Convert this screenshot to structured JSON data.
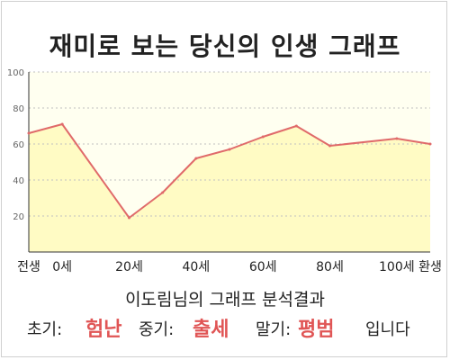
{
  "title": "재미로 보는 당신의 인생 그래프",
  "chart_data": {
    "type": "area",
    "categories": [
      "전생",
      "0세",
      "20세",
      "40세",
      "60세",
      "80세",
      "100세",
      "환생"
    ],
    "x": [
      -10,
      0,
      20,
      30,
      40,
      50,
      60,
      70,
      80,
      100,
      110
    ],
    "values": [
      66,
      71,
      19,
      33,
      52,
      57,
      64,
      70,
      59,
      63,
      60
    ],
    "x_range": [
      -10,
      110
    ],
    "yticks": [
      20,
      40,
      60,
      80,
      100
    ],
    "ylim": [
      0,
      100
    ],
    "grid": true,
    "line_color": "#e06a6a",
    "fill_color": "#fffbc4",
    "plot_bg": "#fffff0"
  },
  "result": {
    "heading": "이도림님의 그래프 분석결과",
    "early_label": "초기:",
    "early_value": "험난",
    "mid_label": "중기:",
    "mid_value": "출세",
    "late_label": "말기:",
    "late_value": "평범",
    "suffix": "입니다"
  }
}
